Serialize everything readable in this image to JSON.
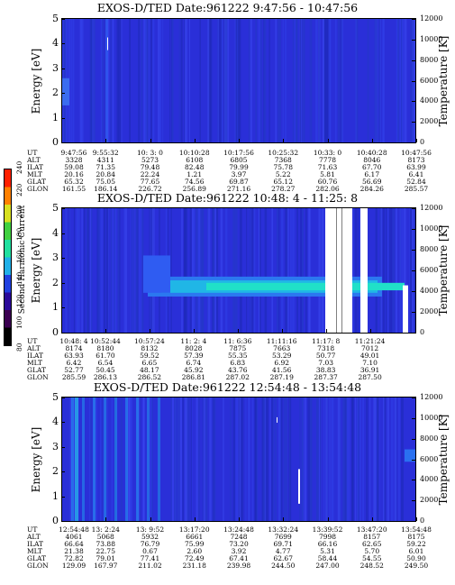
{
  "colorbar": {
    "label": "Second Harmonic Current",
    "ticks": [
      "80",
      "100",
      "120",
      "140",
      "160",
      "180",
      "200",
      "220",
      "240"
    ],
    "colors": [
      "#000000",
      "#3a0050",
      "#2a0a9a",
      "#2040e0",
      "#20b0e8",
      "#20e0a0",
      "#40d040",
      "#d8e020",
      "#ff8000",
      "#ff2000"
    ]
  },
  "panels": [
    {
      "title": "EXOS-D/TED   Date:961222  9:47:56 - 10:47:56",
      "ylabel_left": "Energy [eV]",
      "ylabel_right": "Temperature [K]",
      "energy_ticks": [
        "0",
        "1",
        "2",
        "3",
        "4",
        "5"
      ],
      "temp_ticks": [
        "0",
        "2000",
        "4000",
        "6000",
        "8000",
        "10000",
        "12000"
      ],
      "row_labels": [
        "UT",
        "ALT",
        "ILAT",
        "MLT",
        "GLAT",
        "GLON"
      ],
      "columns": [
        [
          "9:47:56",
          "3328",
          "59.08",
          "20.16",
          "65.32",
          "161.55"
        ],
        [
          "9:55:32",
          "4311",
          "71.35",
          "20.84",
          "75.05",
          "186.14"
        ],
        [
          "10: 3: 0",
          "5273",
          "79.48",
          "22.24",
          "77.65",
          "226.72"
        ],
        [
          "10:10:28",
          "6108",
          "82.48",
          "1.21",
          "74.56",
          "256.89"
        ],
        [
          "10:17:56",
          "6805",
          "79.99",
          "3.97",
          "69.87",
          "271.16"
        ],
        [
          "10:25:32",
          "7368",
          "75.78",
          "5.22",
          "65.12",
          "278.27"
        ],
        [
          "10:33: 0",
          "7778",
          "71.63",
          "5.81",
          "60.76",
          "282.06"
        ],
        [
          "10:40:28",
          "8046",
          "67.70",
          "6.17",
          "56.69",
          "284.26"
        ],
        [
          "10:47:56",
          "8173",
          "63.99",
          "6.41",
          "52.84",
          "285.57"
        ]
      ]
    },
    {
      "title": "EXOS-D/TED   Date:961222  10:48: 4 - 11:25: 8",
      "ylabel_left": "Energy [eV]",
      "ylabel_right": "Temperature [K]",
      "energy_ticks": [
        "0",
        "1",
        "2",
        "3",
        "4",
        "5"
      ],
      "temp_ticks": [
        "0",
        "2000",
        "4000",
        "6000",
        "8000",
        "10000",
        "12000"
      ],
      "row_labels": [
        "UT",
        "ALT",
        "ILAT",
        "MLT",
        "GLAT",
        "GLON"
      ],
      "columns": [
        [
          "10:48: 4",
          "8174",
          "63.93",
          "6.42",
          "52.77",
          "285.59"
        ],
        [
          "10:52:44",
          "8180",
          "61.70",
          "6.54",
          "50.45",
          "286.13"
        ],
        [
          "10:57:24",
          "8132",
          "59.52",
          "6.65",
          "48.17",
          "286.52"
        ],
        [
          "11: 2: 4",
          "8028",
          "57.39",
          "6.74",
          "45.92",
          "286.81"
        ],
        [
          "11: 6:36",
          "7875",
          "55.35",
          "6.83",
          "43.76",
          "287.02"
        ],
        [
          "11:11:16",
          "7663",
          "53.29",
          "6.92",
          "41.56",
          "287.19"
        ],
        [
          "11:17: 8",
          "7318",
          "50.77",
          "7.03",
          "38.83",
          "287.37"
        ],
        [
          "11:21:24",
          "7012",
          "49.01",
          "7.10",
          "36.91",
          "287.50"
        ]
      ]
    },
    {
      "title": "EXOS-D/TED   Date:961222  12:54:48 - 13:54:48",
      "ylabel_left": "Energy [eV]",
      "ylabel_right": "Temperature [K]",
      "energy_ticks": [
        "0",
        "1",
        "2",
        "3",
        "4",
        "5"
      ],
      "temp_ticks": [
        "0",
        "2000",
        "4000",
        "6000",
        "8000",
        "10000",
        "12000"
      ],
      "row_labels": [
        "UT",
        "ALT",
        "ILAT",
        "MLT",
        "GLAT",
        "GLON"
      ],
      "columns": [
        [
          "12:54:48",
          "4061",
          "66.64",
          "21.38",
          "72.82",
          "129.09"
        ],
        [
          "13: 2:24",
          "5068",
          "73.88",
          "22.75",
          "79.01",
          "167.97"
        ],
        [
          "13: 9:52",
          "5932",
          "76.79",
          "0.67",
          "77.41",
          "211.02"
        ],
        [
          "13:17:20",
          "6661",
          "75.99",
          "2.60",
          "72.49",
          "231.18"
        ],
        [
          "13:24:48",
          "7248",
          "73.20",
          "3.92",
          "67.41",
          "239.98"
        ],
        [
          "13:32:24",
          "7699",
          "69.71",
          "4.77",
          "62.67",
          "244.50"
        ],
        [
          "13:39:52",
          "7998",
          "66.16",
          "5.31",
          "58.44",
          "247.00"
        ],
        [
          "13:47:20",
          "8157",
          "62.65",
          "5.70",
          "54.55",
          "248.52"
        ],
        [
          "13:54:48",
          "8175",
          "59.22",
          "6.01",
          "50.90",
          "249.50"
        ]
      ]
    }
  ],
  "chart_data": [
    {
      "type": "heatmap",
      "title": "EXOS-D/TED   Date:961222  9:47:56 - 10:47:56",
      "ylabel": "Energy [eV]",
      "y2label": "Temperature [K]",
      "ylim": [
        0,
        5
      ],
      "y2lim": [
        0,
        12000
      ],
      "x_ticks": [
        "9:47:56",
        "9:55:32",
        "10: 3: 0",
        "10:10:28",
        "10:17:56",
        "10:25:32",
        "10:33: 0",
        "10:40:28",
        "10:47:56"
      ]
    },
    {
      "type": "heatmap",
      "title": "EXOS-D/TED   Date:961222  10:48: 4 - 11:25: 8",
      "ylabel": "Energy [eV]",
      "y2label": "Temperature [K]",
      "ylim": [
        0,
        5
      ],
      "y2lim": [
        0,
        12000
      ],
      "x_ticks": [
        "10:48: 4",
        "10:52:44",
        "10:57:24",
        "11: 2: 4",
        "11: 6:36",
        "11:11:16",
        "11:17: 8",
        "11:21:24"
      ]
    },
    {
      "type": "heatmap",
      "title": "EXOS-D/TED   Date:961222  12:54:48 - 13:54:48",
      "ylabel": "Energy [eV]",
      "y2label": "Temperature [K]",
      "ylim": [
        0,
        5
      ],
      "y2lim": [
        0,
        12000
      ],
      "x_ticks": [
        "12:54:48",
        "13: 2:24",
        "13: 9:52",
        "13:17:20",
        "13:24:48",
        "13:32:24",
        "13:39:52",
        "13:47:20",
        "13:54:48"
      ]
    }
  ]
}
